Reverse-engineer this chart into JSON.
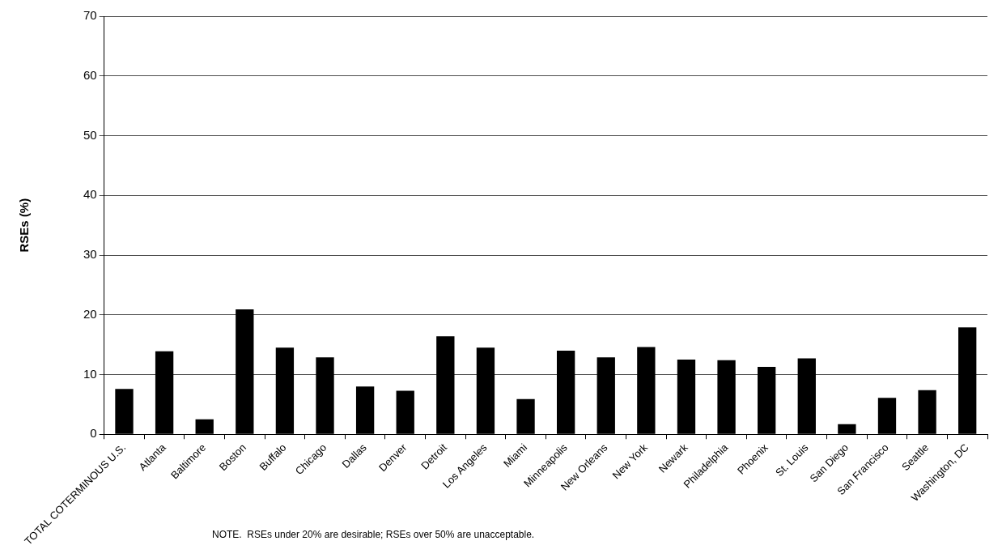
{
  "chart_data": {
    "type": "bar",
    "ylabel": "RSEs (%)",
    "categories": [
      "TOTAL COTERMINOUS U.S.",
      "Atlanta",
      "Baltimore",
      "Boston",
      "Buffalo",
      "Chicago",
      "Dallas",
      "Denver",
      "Detroit",
      "Los Angeles",
      "Miami",
      "Minneapolis",
      "New Orleans",
      "New York",
      "Newark",
      "Philadelphia",
      "Phoenix",
      "St. Louis",
      "San Diego",
      "San Francisco",
      "Seattle",
      "Washington, DC"
    ],
    "values": [
      7.6,
      13.9,
      2.5,
      20.9,
      14.5,
      12.9,
      8.0,
      7.3,
      16.4,
      14.5,
      5.9,
      14.0,
      12.9,
      14.6,
      12.5,
      12.4,
      11.3,
      12.7,
      1.7,
      6.1,
      7.4,
      17.9
    ],
    "color": "#000000",
    "ylim": [
      0,
      70
    ],
    "yticks": [
      0,
      10,
      20,
      30,
      40,
      50,
      60,
      70
    ],
    "grid": "y",
    "legend": false,
    "annotations": [
      "NOTE.  RSEs under 20% are desirable; RSEs over 50% are unacceptable."
    ]
  }
}
